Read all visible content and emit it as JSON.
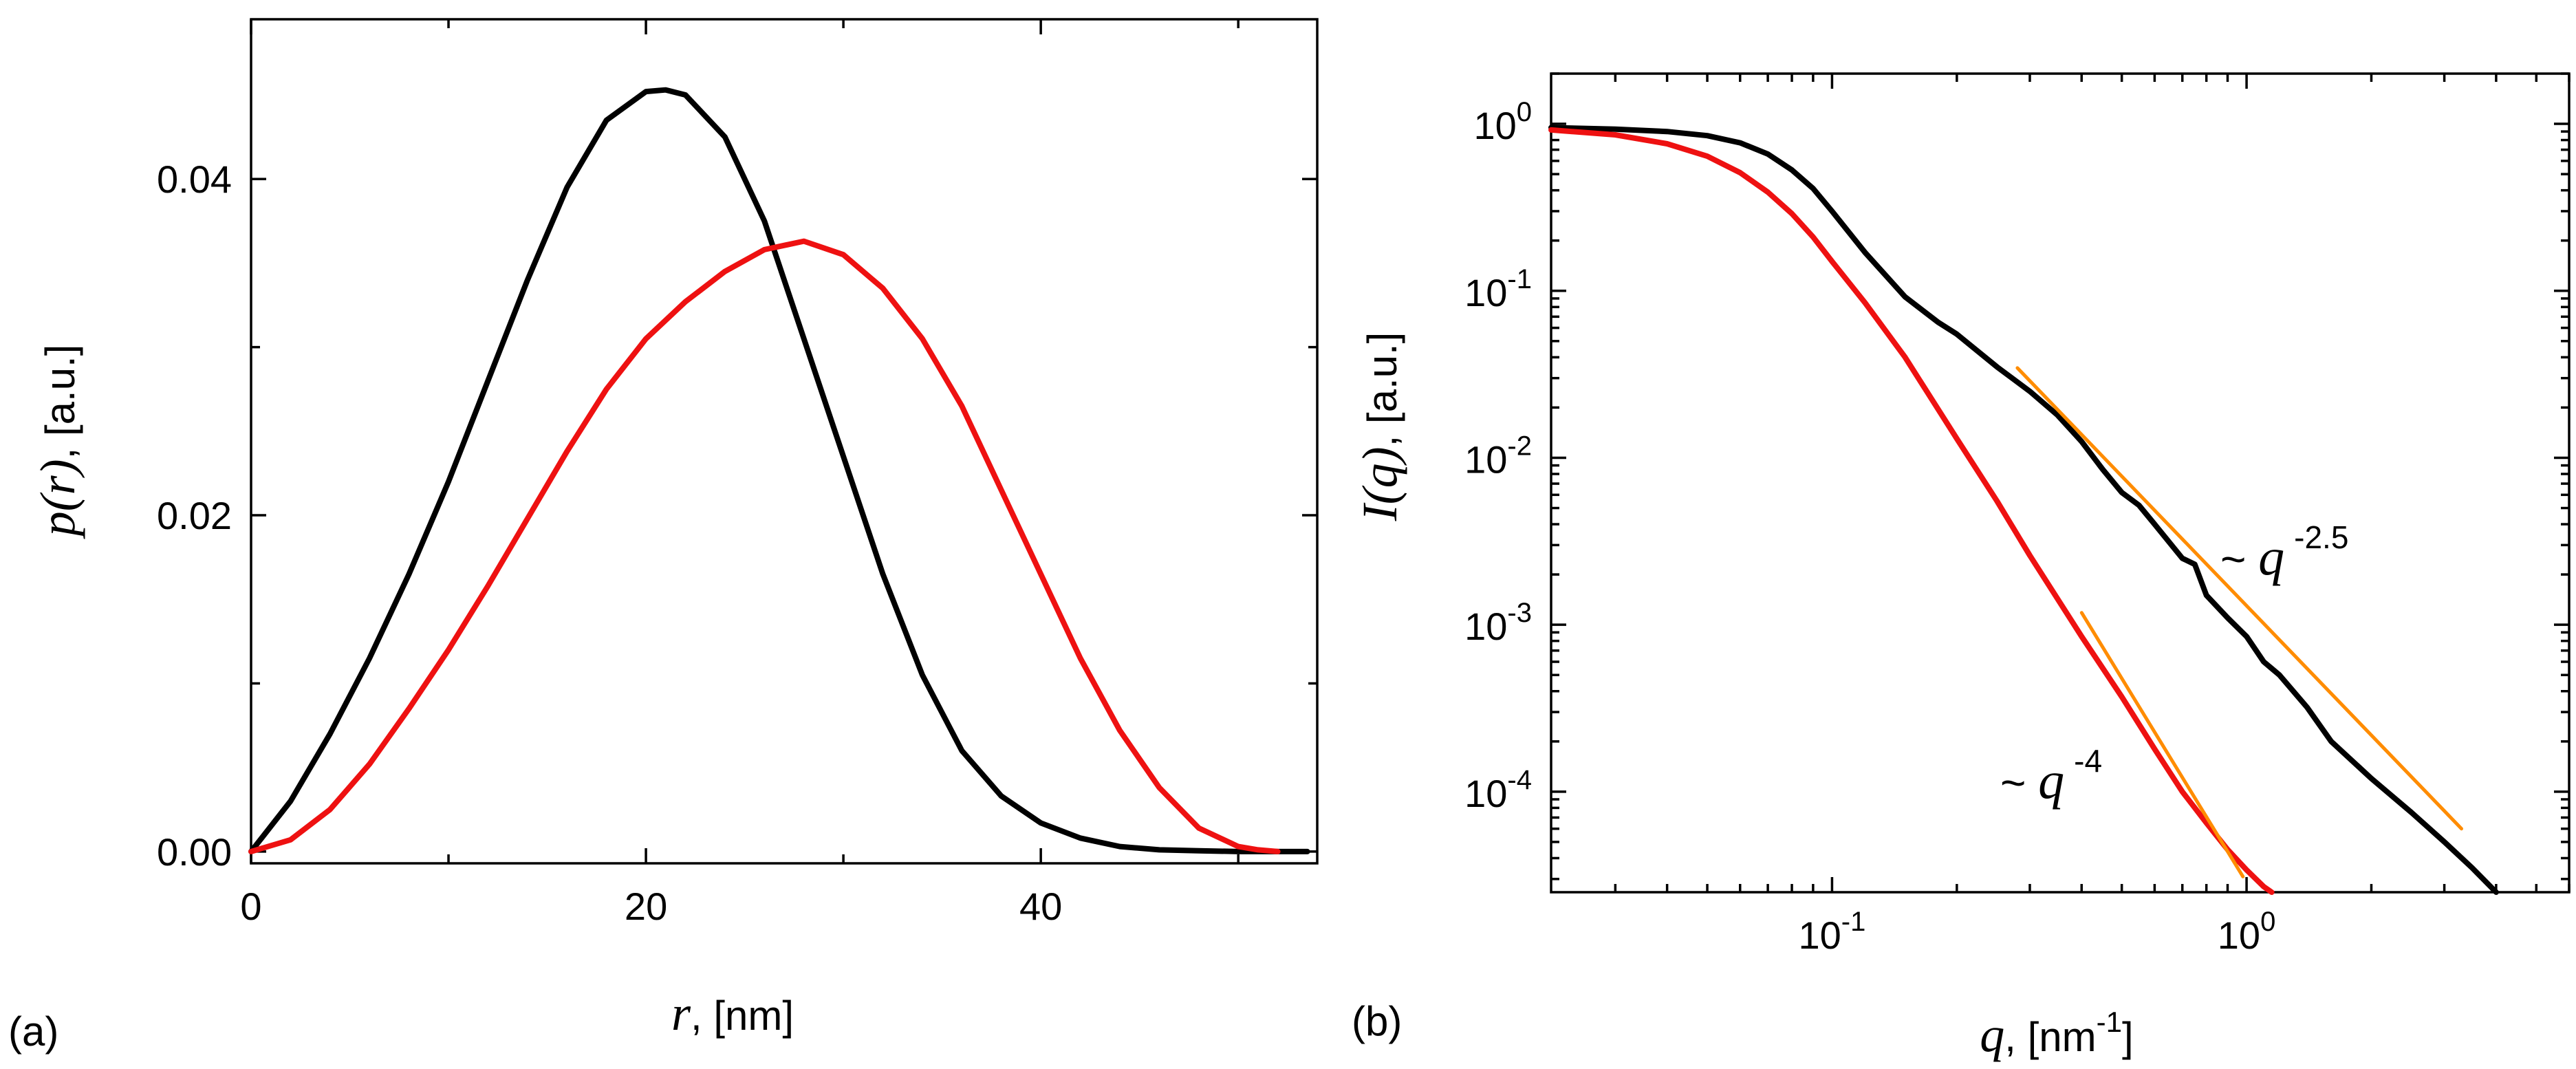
{
  "panel_labels": {
    "a": "(a)",
    "b": "(b)"
  },
  "colors": {
    "black_series": "#000000",
    "red_series": "#ee1111",
    "fit_lines": "#ff8c00"
  },
  "chart_data": [
    {
      "id": "a",
      "type": "line",
      "xlabel_var": "r",
      "xlabel_rest": ", [nm]",
      "ylabel_var": "p(r)",
      "ylabel_rest": ", [a.u.]",
      "xlim": [
        0,
        54
      ],
      "ylim": [
        -0.0007,
        0.0495
      ],
      "xticks": [
        0,
        20,
        40
      ],
      "xtick_labels": [
        "0",
        "20",
        "40"
      ],
      "yticks": [
        0.0,
        0.02,
        0.04
      ],
      "ytick_labels": [
        "0.00",
        "0.02",
        "0.04"
      ],
      "minor_xticks": [
        10,
        30,
        50
      ],
      "minor_yticks": [
        0.01,
        0.03
      ],
      "series": [
        {
          "name": "black",
          "color": "#000000",
          "x": [
            0,
            2,
            4,
            6,
            8,
            10,
            12,
            14,
            16,
            18,
            20,
            21,
            22,
            24,
            26,
            28,
            30,
            32,
            34,
            36,
            38,
            40,
            42,
            44,
            46,
            48,
            50,
            52,
            53.5
          ],
          "y": [
            0.0,
            0.003,
            0.007,
            0.0115,
            0.0165,
            0.022,
            0.028,
            0.034,
            0.0395,
            0.0435,
            0.0452,
            0.0453,
            0.045,
            0.0425,
            0.0375,
            0.0305,
            0.0235,
            0.0165,
            0.0105,
            0.006,
            0.0033,
            0.0017,
            0.0008,
            0.0003,
            0.0001,
            5e-05,
            0.0,
            0.0,
            0.0
          ]
        },
        {
          "name": "red",
          "color": "#ee1111",
          "x": [
            0,
            2,
            4,
            6,
            8,
            10,
            12,
            14,
            16,
            18,
            20,
            22,
            24,
            26,
            28,
            30,
            32,
            34,
            36,
            38,
            40,
            42,
            44,
            46,
            48,
            50,
            51,
            52
          ],
          "y": [
            0.0,
            0.0007,
            0.0025,
            0.0052,
            0.0085,
            0.012,
            0.0158,
            0.0198,
            0.0238,
            0.0275,
            0.0305,
            0.0327,
            0.0345,
            0.0358,
            0.0363,
            0.0355,
            0.0335,
            0.0305,
            0.0265,
            0.0215,
            0.0165,
            0.0115,
            0.0072,
            0.0038,
            0.0014,
            0.0003,
            0.0001,
            0.0
          ]
        }
      ]
    },
    {
      "id": "b",
      "type": "line",
      "xscale": "log",
      "yscale": "log",
      "xlabel_var": "q",
      "xlabel_rest": ", [nm",
      "xlabel_exp": "-1",
      "xlabel_close": "]",
      "ylabel_var": "I(q)",
      "ylabel_rest": ", [a.u.]",
      "xlim": [
        0.021,
        6.0
      ],
      "ylim": [
        2.5e-05,
        2.0
      ],
      "xticks": [
        0.1,
        1.0
      ],
      "xtick_labels": [
        [
          "10",
          "-1"
        ],
        [
          "10",
          "0"
        ]
      ],
      "yticks": [
        1.0,
        0.1,
        0.01,
        0.001,
        0.0001
      ],
      "ytick_labels": [
        [
          "10",
          "0"
        ],
        [
          "10",
          "-1"
        ],
        [
          "10",
          "-2"
        ],
        [
          "10",
          "-3"
        ],
        [
          "10",
          "-4"
        ]
      ],
      "series": [
        {
          "name": "black",
          "color": "#000000",
          "x": [
            0.021,
            0.03,
            0.04,
            0.05,
            0.06,
            0.07,
            0.08,
            0.09,
            0.1,
            0.12,
            0.15,
            0.18,
            0.2,
            0.25,
            0.3,
            0.35,
            0.4,
            0.45,
            0.5,
            0.55,
            0.6,
            0.7,
            0.75,
            0.8,
            0.9,
            1.0,
            1.1,
            1.2,
            1.4,
            1.6,
            2.0,
            2.5,
            3.0,
            3.5,
            4.0
          ],
          "y": [
            0.95,
            0.93,
            0.9,
            0.85,
            0.77,
            0.66,
            0.53,
            0.41,
            0.3,
            0.17,
            0.092,
            0.065,
            0.055,
            0.035,
            0.025,
            0.018,
            0.0125,
            0.0085,
            0.0062,
            0.0052,
            0.004,
            0.0025,
            0.0023,
            0.0015,
            0.0011,
            0.00085,
            0.0006,
            0.0005,
            0.00032,
            0.0002,
            0.00012,
            7.5e-05,
            5e-05,
            3.5e-05,
            2.5e-05
          ]
        },
        {
          "name": "red",
          "color": "#ee1111",
          "x": [
            0.021,
            0.03,
            0.04,
            0.05,
            0.06,
            0.07,
            0.08,
            0.09,
            0.1,
            0.12,
            0.15,
            0.2,
            0.25,
            0.3,
            0.4,
            0.5,
            0.6,
            0.7,
            0.8,
            0.9,
            1.0,
            1.1,
            1.15
          ],
          "y": [
            0.92,
            0.86,
            0.76,
            0.64,
            0.51,
            0.39,
            0.29,
            0.21,
            0.15,
            0.085,
            0.04,
            0.013,
            0.0055,
            0.0026,
            0.00085,
            0.00037,
            0.00018,
            0.0001,
            6.5e-05,
            4.5e-05,
            3.4e-05,
            2.7e-05,
            2.5e-05
          ]
        },
        {
          "name": "fit q^-2.5",
          "color": "#ff8c00",
          "x": [
            0.28,
            3.3
          ],
          "y": [
            0.0345,
            6e-05
          ]
        },
        {
          "name": "fit q^-4",
          "color": "#ff8c00",
          "x": [
            0.4,
            0.98
          ],
          "y": [
            0.00118,
            3.1e-05
          ]
        }
      ],
      "annotations": [
        {
          "id": "ann1",
          "prefix": "~ ",
          "var": "q",
          "exp": "-2.5"
        },
        {
          "id": "ann2",
          "prefix": "~ ",
          "var": "q",
          "exp": "-4"
        }
      ]
    }
  ]
}
